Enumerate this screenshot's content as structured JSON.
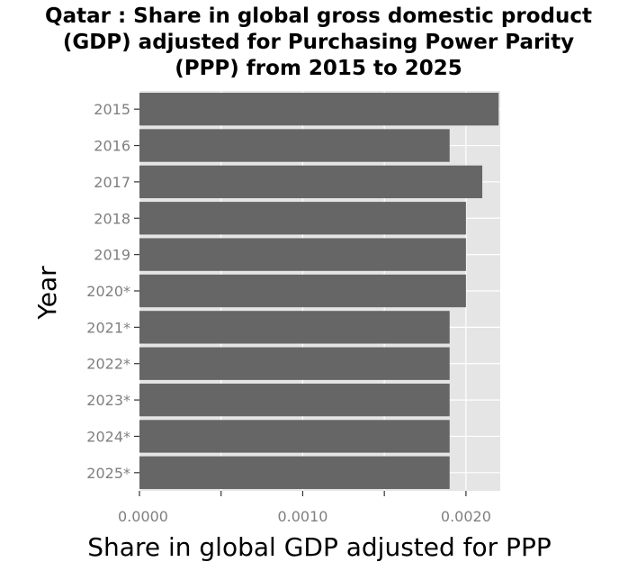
{
  "title_lines": [
    "Qatar : Share in global gross domestic product",
    "(GDP) adjusted for Purchasing Power Parity",
    "(PPP) from 2015 to 2025"
  ],
  "chart_data": {
    "type": "bar",
    "orientation": "horizontal",
    "title": "Qatar : Share in global gross domestic product (GDP) adjusted for Purchasing Power Parity (PPP) from 2015 to 2025",
    "xlabel": "Share in global GDP adjusted for PPP",
    "ylabel": "Year",
    "categories": [
      "2015",
      "2016",
      "2017",
      "2018",
      "2019",
      "2020*",
      "2021*",
      "2022*",
      "2023*",
      "2024*",
      "2025*"
    ],
    "values": [
      0.0022,
      0.0019,
      0.0021,
      0.002,
      0.002,
      0.002,
      0.0019,
      0.0019,
      0.0019,
      0.0019,
      0.0019
    ],
    "xlim": [
      0,
      0.00221
    ],
    "xticks": [
      0,
      0.0005,
      0.001,
      0.0015,
      0.002
    ],
    "xtick_labels": [
      "0.0000",
      "",
      "0.0010",
      "",
      "0.0020"
    ],
    "grid": true,
    "bar_color": "#666666",
    "panel_color": "#e5e5e5"
  }
}
